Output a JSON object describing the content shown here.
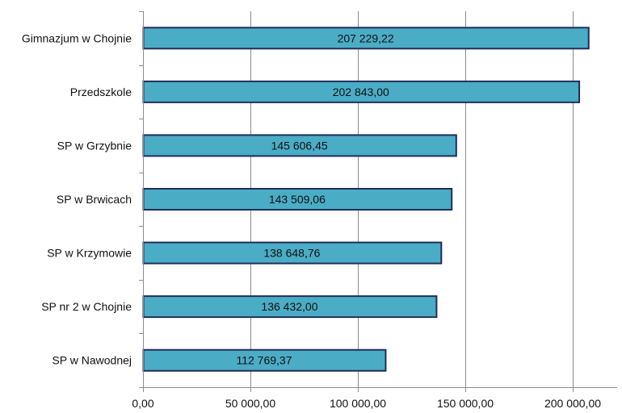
{
  "chart_data": {
    "type": "bar",
    "orientation": "horizontal",
    "title": "",
    "xlabel": "",
    "ylabel": "",
    "categories": [
      "Gimnazjum w Chojnie",
      "Przedszkole",
      "SP w Grzybnie",
      "SP w Brwicach",
      "SP w Krzymowie",
      "SP nr 2 w Chojnie",
      "SP w Nawodnej"
    ],
    "values": [
      207229.22,
      202843.0,
      145606.45,
      143509.06,
      138648.76,
      136432.0,
      112769.37
    ],
    "data_labels": [
      "207 229,22",
      "202 843,00",
      "145 606,45",
      "143 509,06",
      "138 648,76",
      "136 432,00",
      "112 769,37"
    ],
    "xlim": [
      0,
      200000
    ],
    "x_ticks": [
      0,
      50000,
      100000,
      150000,
      200000
    ],
    "x_tick_labels": [
      "0,00",
      "50 000,00",
      "100 000,00",
      "150 000,00",
      "200 000,00"
    ],
    "grid": "vertical",
    "legend": "none",
    "colors": {
      "bar_fill": "#4BACC6",
      "bar_stroke": "#1F2D5C",
      "grid": "#8C8C8C",
      "axis": "#8C8C8C",
      "text": "#111111"
    }
  }
}
